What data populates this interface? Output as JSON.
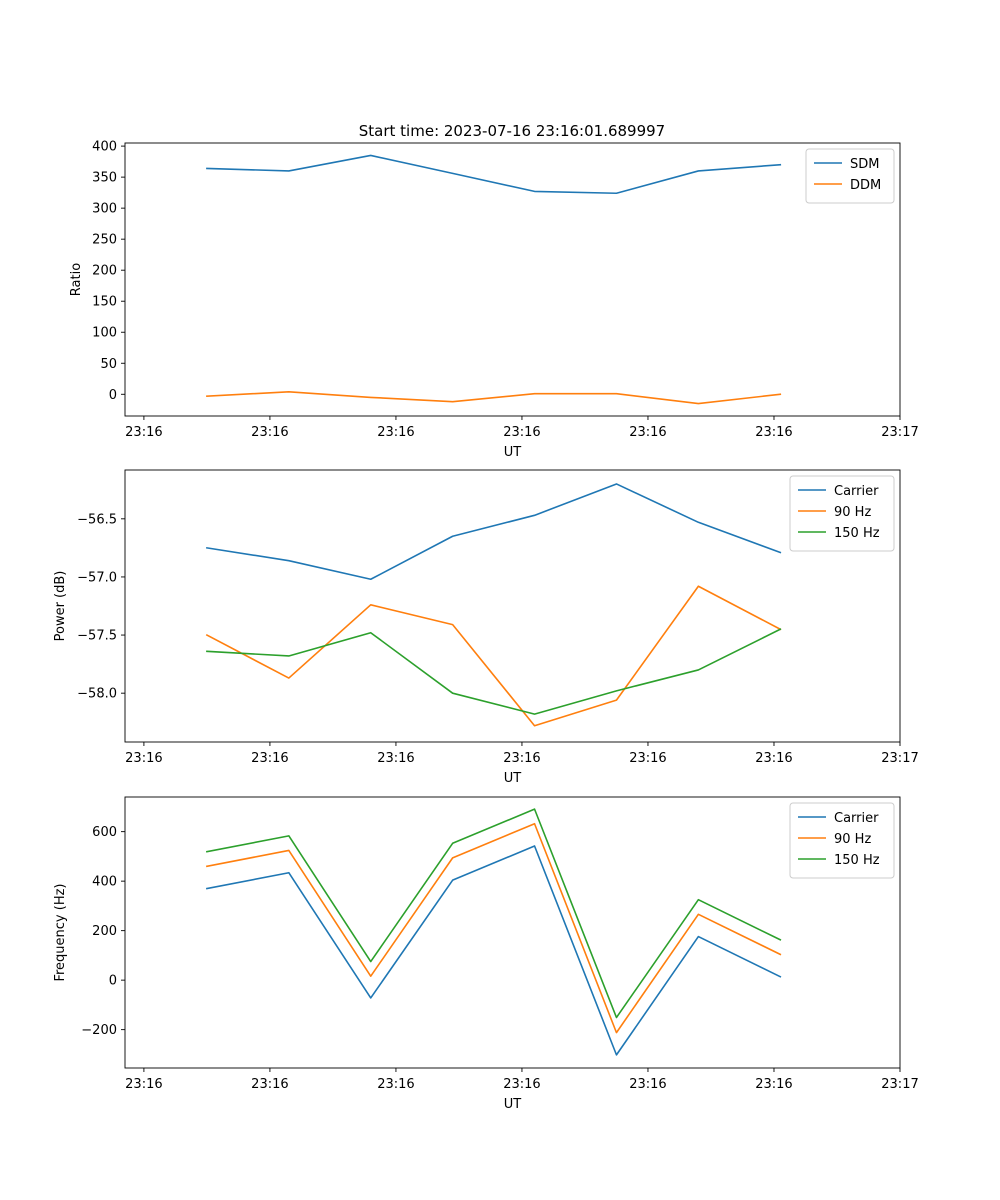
{
  "figure": {
    "title": "Start time: 2023-07-16 23:16:01.689997"
  },
  "chart_data": [
    {
      "type": "line",
      "title": "Start time: 2023-07-16 23:16:01.689997",
      "xlabel": "UT",
      "ylabel": "Ratio",
      "x_tick_labels": [
        "23:16",
        "23:16",
        "23:16",
        "23:16",
        "23:16",
        "23:16",
        "23:17"
      ],
      "x": [
        0.5,
        1.15,
        1.8,
        2.45,
        3.1,
        3.75,
        4.4,
        5.05
      ],
      "xlim": [
        -0.15,
        6.0
      ],
      "x_ticks": [
        0,
        1,
        2,
        3,
        4,
        5,
        6
      ],
      "ylim": [
        -35,
        405
      ],
      "y_ticks": [
        0,
        50,
        100,
        150,
        200,
        250,
        300,
        350,
        400
      ],
      "y_tick_labels": [
        "0",
        "50",
        "100",
        "150",
        "200",
        "250",
        "300",
        "350",
        "400"
      ],
      "legend_position": "top-right",
      "series": [
        {
          "name": "SDM",
          "color": "#1f77b4",
          "values": [
            364,
            360,
            385,
            356,
            327,
            324,
            360,
            370
          ]
        },
        {
          "name": "DDM",
          "color": "#ff7f0e",
          "values": [
            -3,
            4,
            -5,
            -12,
            1,
            1,
            -15,
            0
          ]
        }
      ]
    },
    {
      "type": "line",
      "xlabel": "UT",
      "ylabel": "Power (dB)",
      "x_tick_labels": [
        "23:16",
        "23:16",
        "23:16",
        "23:16",
        "23:16",
        "23:16",
        "23:17"
      ],
      "x": [
        0.5,
        1.15,
        1.8,
        2.45,
        3.1,
        3.75,
        4.4,
        5.05
      ],
      "xlim": [
        -0.15,
        6.0
      ],
      "x_ticks": [
        0,
        1,
        2,
        3,
        4,
        5,
        6
      ],
      "ylim": [
        -58.42,
        -56.08
      ],
      "y_ticks": [
        -56.5,
        -57.0,
        -57.5,
        -58.0
      ],
      "y_tick_labels": [
        "−56.5",
        "−57.0",
        "−57.5",
        "−58.0"
      ],
      "legend_position": "top-right",
      "series": [
        {
          "name": "Carrier",
          "color": "#1f77b4",
          "values": [
            -56.75,
            -56.86,
            -57.02,
            -56.65,
            -56.47,
            -56.2,
            -56.53,
            -56.79
          ]
        },
        {
          "name": "90 Hz",
          "color": "#ff7f0e",
          "values": [
            -57.5,
            -57.87,
            -57.24,
            -57.41,
            -58.28,
            -58.06,
            -57.08,
            -57.45
          ]
        },
        {
          "name": "150 Hz",
          "color": "#2ca02c",
          "values": [
            -57.64,
            -57.68,
            -57.48,
            -58.0,
            -58.18,
            -57.98,
            -57.8,
            -57.45
          ]
        }
      ]
    },
    {
      "type": "line",
      "xlabel": "UT",
      "ylabel": "Frequency (Hz)",
      "x_tick_labels": [
        "23:16",
        "23:16",
        "23:16",
        "23:16",
        "23:16",
        "23:16",
        "23:17"
      ],
      "x": [
        0.5,
        1.15,
        1.8,
        2.45,
        3.1,
        3.75,
        4.4,
        5.05
      ],
      "xlim": [
        -0.15,
        6.0
      ],
      "x_ticks": [
        0,
        1,
        2,
        3,
        4,
        5,
        6
      ],
      "ylim": [
        -355,
        740
      ],
      "y_ticks": [
        -200,
        0,
        200,
        400,
        600
      ],
      "y_tick_labels": [
        "−200",
        "0",
        "200",
        "400",
        "600"
      ],
      "legend_position": "top-right",
      "series": [
        {
          "name": "Carrier",
          "color": "#1f77b4",
          "values": [
            370,
            434,
            -72,
            404,
            542,
            -302,
            176,
            14
          ]
        },
        {
          "name": "90 Hz",
          "color": "#ff7f0e",
          "values": [
            460,
            524,
            16,
            494,
            632,
            -212,
            266,
            104
          ]
        },
        {
          "name": "150 Hz",
          "color": "#2ca02c",
          "values": [
            519,
            583,
            75,
            553,
            691,
            -151,
            325,
            163
          ]
        }
      ]
    }
  ]
}
